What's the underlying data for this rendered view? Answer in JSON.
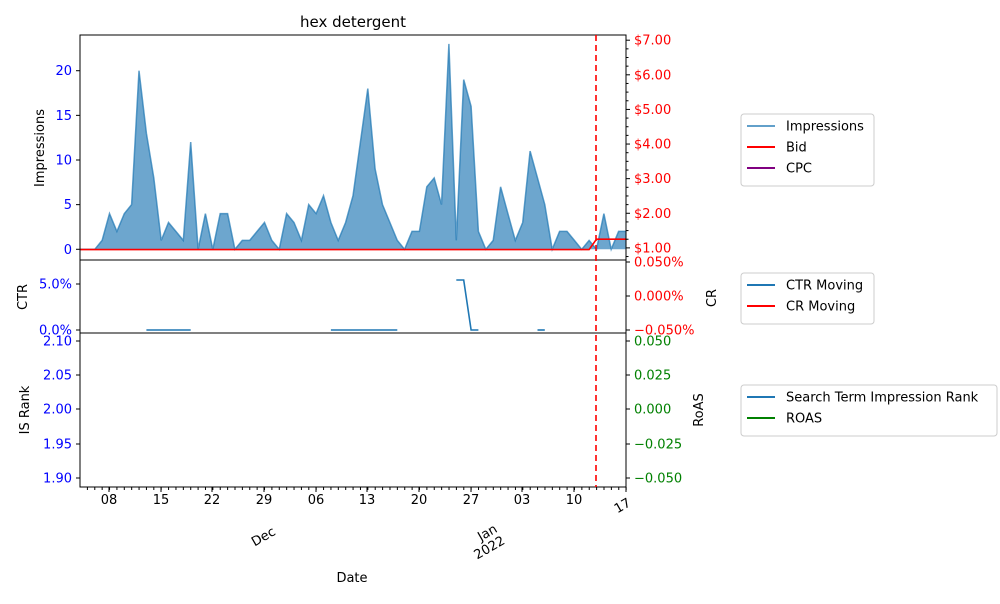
{
  "title": "hex detergent",
  "x_axis": {
    "label": "Date",
    "tick_labels": [
      "08",
      "15",
      "22",
      "29",
      "06",
      "13",
      "20",
      "27",
      "03",
      "10",
      "17"
    ],
    "month_labels": [
      "Dec",
      "Jan\n2022"
    ]
  },
  "colors": {
    "impressions": "#1f77b4",
    "bid": "#ff0000",
    "cpc": "#800080",
    "ctr": "#1f77b4",
    "cr": "#ff0000",
    "is_rank": "#1f77b4",
    "roas": "#008000",
    "left_ticks": "#0000ff",
    "right_ticks_top": "#ff0000",
    "right_ticks_bottom": "#008000",
    "marker_line": "#ff0000"
  },
  "chart_data": [
    {
      "type": "area",
      "ylabel": "Impressions",
      "ylabel_right": "",
      "yticks": [
        "0",
        "5",
        "10",
        "15",
        "20"
      ],
      "yticks_right": [
        "$1.00",
        "$2.00",
        "$3.00",
        "$4.00",
        "$5.00",
        "$6.00",
        "$7.00"
      ],
      "ylim": [
        -1.2,
        24
      ],
      "ylim_right": [
        0.65,
        7.15
      ],
      "series": [
        {
          "name": "Impressions",
          "values": [
            0,
            0,
            0,
            1,
            4,
            2,
            4,
            5,
            20,
            13,
            8,
            1,
            3,
            2,
            1,
            12,
            0,
            4,
            0,
            4,
            4,
            0,
            1,
            1,
            2,
            3,
            1,
            0,
            4,
            3,
            1,
            5,
            4,
            6,
            3,
            1,
            3,
            6,
            12,
            18,
            9,
            5,
            3,
            1,
            0,
            2,
            2,
            7,
            8,
            5,
            23,
            1,
            19,
            16,
            2,
            0,
            1,
            7,
            4,
            1,
            3,
            11,
            8,
            5,
            0,
            2,
            2,
            1,
            0,
            1,
            0,
            4,
            0,
            2,
            2
          ]
        },
        {
          "name": "Bid",
          "values": [
            0.95,
            0.95,
            0.95,
            0.95,
            0.95,
            0.95,
            0.95,
            0.95,
            0.95,
            0.95,
            0.95,
            0.95,
            0.95,
            0.95,
            0.95,
            0.95,
            0.95,
            0.95,
            0.95,
            0.95,
            0.95,
            0.95,
            0.95,
            0.95,
            0.95,
            0.95,
            0.95,
            0.95,
            0.95,
            0.95,
            0.95,
            0.95,
            0.95,
            0.95,
            0.95,
            0.95,
            0.95,
            0.95,
            0.95,
            0.95,
            0.95,
            0.95,
            0.95,
            0.95,
            0.95,
            0.95,
            0.95,
            0.95,
            0.95,
            0.95,
            0.95,
            0.95,
            0.95,
            0.95,
            0.95,
            0.95,
            0.95,
            0.95,
            0.95,
            0.95,
            0.95,
            0.95,
            0.95,
            0.95,
            0.95,
            0.95,
            0.95,
            0.95,
            0.95,
            0.95,
            1.25,
            1.25,
            1.25,
            1.25,
            1.25
          ]
        },
        {
          "name": "CPC",
          "values": []
        }
      ]
    },
    {
      "type": "line",
      "ylabel": "CTR",
      "ylabel_right": "CR",
      "yticks": [
        "0.0%",
        "5.0%"
      ],
      "yticks_right": [
        "−0.050%",
        "0.000%",
        "0.050%"
      ],
      "series": [
        {
          "name": "CTR Moving",
          "segments": [
            {
              "x": [
                9,
                15
              ],
              "y": [
                0,
                0
              ]
            },
            {
              "x": [
                34,
                43
              ],
              "y": [
                0,
                0
              ]
            },
            {
              "x": [
                51,
                52,
                53,
                54
              ],
              "y": [
                9.5,
                9.5,
                0,
                0
              ]
            },
            {
              "x": [
                62,
                63
              ],
              "y": [
                0,
                0
              ]
            }
          ]
        },
        {
          "name": "CR Moving",
          "segments": []
        }
      ]
    },
    {
      "type": "line",
      "ylabel": "IS Rank",
      "ylabel_right": "RoAS",
      "yticks": [
        "1.90",
        "1.95",
        "2.00",
        "2.05",
        "2.10"
      ],
      "yticks_right": [
        "−0.050",
        "−0.025",
        "0.000",
        "0.025",
        "0.050"
      ],
      "series": [
        {
          "name": "Search Term Impression Rank",
          "values": []
        },
        {
          "name": "ROAS",
          "values": []
        }
      ]
    }
  ],
  "legends": [
    [
      "Impressions",
      "Bid",
      "CPC"
    ],
    [
      "CTR Moving",
      "CR Moving"
    ],
    [
      "Search Term Impression Rank",
      "ROAS"
    ]
  ]
}
